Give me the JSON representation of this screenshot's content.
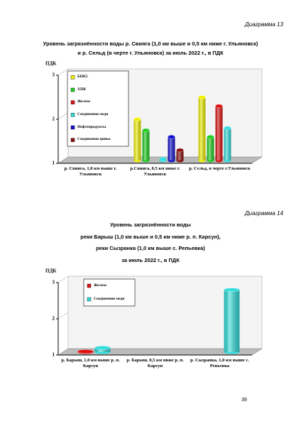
{
  "chart_data": [
    {
      "type": "bar",
      "caption": "Диаграмма 13",
      "title": [
        "Уровень загрязнённости воды р. Свияга (1,0 км выше и 0,5 км ниже г. Ульяновск)",
        "и р. Сельд (в черте г. Ульяновск) за июль 2022 г., в ПДК"
      ],
      "y_label": "ПДК",
      "categories": [
        "р. Свияга, 1,0 км выше г. Ульяновск",
        "р.Свияга, 0,5 км ниже г. Ульяновск",
        "р. Сельд, в черте г.Ульяновск"
      ],
      "series": [
        {
          "name": "БПК5",
          "color": "#f2f200",
          "values": [
            null,
            2.0,
            2.5
          ]
        },
        {
          "name": "ХПК",
          "color": "#1fcf1f",
          "values": [
            null,
            1.75,
            1.6
          ]
        },
        {
          "name": "Железо",
          "color": "#e01010",
          "values": [
            null,
            null,
            2.3
          ]
        },
        {
          "name": "Соединения меди",
          "color": "#33dede",
          "values": [
            null,
            1.1,
            1.8
          ]
        },
        {
          "name": "Нефтепродукты",
          "color": "#1010d0",
          "values": [
            null,
            1.6,
            null
          ]
        },
        {
          "name": "Соединения цинка",
          "color": "#8a0f0f",
          "values": [
            null,
            1.3,
            null
          ]
        }
      ],
      "ylim": [
        1,
        3
      ],
      "yticks": [
        1,
        2,
        3
      ]
    },
    {
      "type": "bar",
      "caption": "Диаграмма 14",
      "title": [
        "Уровень загрязнённости воды",
        "реки Барыш (1,0 км выше и 0,5 км ниже р. п. Карсун),",
        "реки Сызранка (1,0 км выше с. Репьевка)",
        "за июль 2022 г., в ПДК"
      ],
      "y_label": "ПДК",
      "categories": [
        "р. Барыш, 1,0 км выше р. п. Карсун",
        "р. Барыш, 0,5 км ниже р. п. Карсун",
        "р. Сызранка, 1,0 км выше с. Репьевка"
      ],
      "series": [
        {
          "name": "Железо",
          "color": "#e01010",
          "values": [
            1.1,
            null,
            null
          ]
        },
        {
          "name": "Соединения меди",
          "color": "#33dede",
          "values": [
            1.2,
            null,
            2.8
          ]
        }
      ],
      "ylim": [
        1,
        3
      ],
      "yticks": [
        1,
        2,
        3
      ]
    }
  ],
  "page_number": "39"
}
